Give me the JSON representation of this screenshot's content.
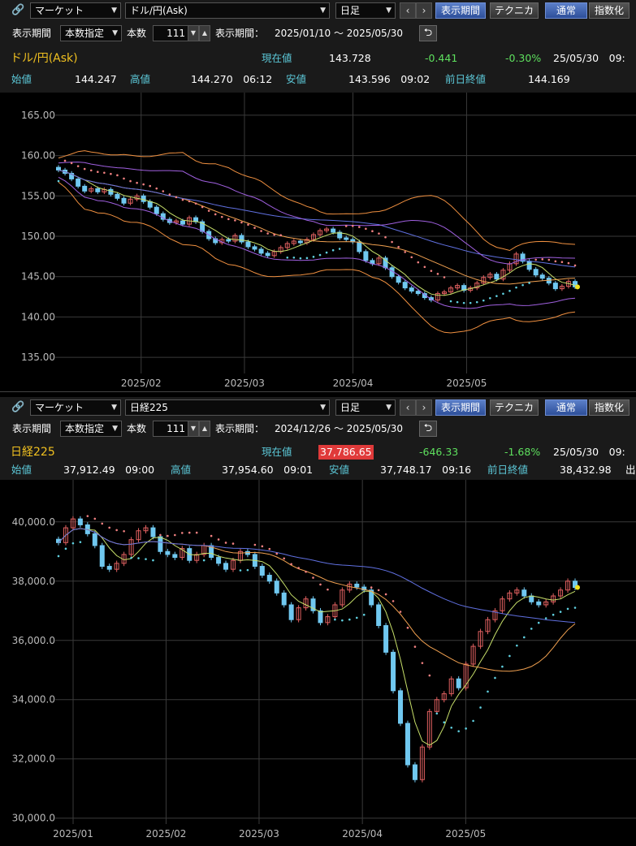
{
  "panels": [
    {
      "market_select": "マーケット",
      "symbol_select": "ドル/円(Ask)",
      "period_select": "日足",
      "buttons": {
        "display_period": "表示期間",
        "technical": "テクニカル",
        "normal": "通常",
        "index": "指数化"
      },
      "period_label": "表示期間",
      "period_mode": "本数指定",
      "count_label": "本数",
      "count_value": "111",
      "range_label": "表示期間：",
      "range_value": "2025/01/10 ～ 2025/05/30",
      "title": "ドル/円(Ask)",
      "current_label": "現在値",
      "current_value": "143.728",
      "change": "-0.441",
      "change_pct": "-0.30%",
      "datetime": "25/05/30　09:",
      "open_label": "始値",
      "open_value": "144.247",
      "high_label": "高値",
      "high_value": "144.270　06:12",
      "low_label": "安値",
      "low_value": "143.596　09:02",
      "prev_label": "前日終値",
      "prev_value": "144.169",
      "extra": "",
      "colors": {
        "bull": "#e06060",
        "bear": "#70c8f0",
        "sma_short": "#c8e06a",
        "sma_mid": "#f0a050",
        "sma_long": "#6070e0",
        "sar": "#60d0e0"
      },
      "chart_data": {
        "type": "candlestick",
        "yticks": [
          "165.00",
          "160.00",
          "155.00",
          "150.00",
          "145.00",
          "140.00",
          "135.00"
        ],
        "ylim": [
          133,
          167
        ],
        "xticks": [
          "2025/02",
          "2025/03",
          "2025/04",
          "2025/05"
        ],
        "series": [
          {
            "name": "close",
            "values": [
              158.2,
              157.8,
              157.1,
              156.2,
              155.6,
              155.9,
              155.5,
              155.8,
              155.2,
              154.7,
              154.1,
              154.6,
              155.0,
              154.3,
              153.6,
              152.8,
              152.1,
              151.7,
              151.9,
              151.5,
              152.3,
              151.8,
              150.6,
              149.7,
              149.2,
              149.6,
              149.4,
              150.1,
              149.3,
              148.7,
              148.4,
              147.9,
              147.6,
              148.1,
              148.6,
              149.1,
              149.4,
              149.2,
              149.6,
              150.2,
              150.7,
              150.9,
              150.5,
              149.8,
              149.6,
              149.3,
              148.1,
              147.0,
              146.6,
              147.3,
              146.1,
              145.0,
              144.3,
              143.6,
              143.2,
              142.9,
              142.4,
              142.1,
              142.9,
              143.1,
              143.6,
              143.9,
              143.3,
              143.6,
              144.2,
              144.9,
              145.3,
              144.7,
              145.8,
              146.6,
              147.8,
              146.9,
              145.9,
              145.2,
              144.8,
              144.2,
              143.5,
              143.8,
              144.4,
              143.728
            ]
          }
        ]
      }
    },
    {
      "market_select": "マーケット",
      "symbol_select": "日経225",
      "period_select": "日足",
      "buttons": {
        "display_period": "表示期間",
        "technical": "テクニカル",
        "normal": "通常",
        "index": "指数化"
      },
      "period_label": "表示期間",
      "period_mode": "本数指定",
      "count_label": "本数",
      "count_value": "111",
      "range_label": "表示期間：",
      "range_value": "2024/12/26 ～ 2025/05/30",
      "title": "日経225",
      "current_label": "現在値",
      "current_value": "37,786.65",
      "change": "-646.33",
      "change_pct": "-1.68%",
      "datetime": "25/05/30　09:",
      "open_label": "始値",
      "open_value": "37,912.49　09:00",
      "high_label": "高値",
      "high_value": "37,954.60　09:01",
      "low_label": "安値",
      "low_value": "37,748.17　09:16",
      "prev_label": "前日終値",
      "prev_value": "38,432.98",
      "extra": "出",
      "colors": {
        "bull": "#e06060",
        "bear": "#70c8f0",
        "sma_short": "#c8e06a",
        "sma_mid": "#f0a050",
        "sma_long": "#6070e0",
        "sar": "#60d0e0"
      },
      "chart_data": {
        "type": "candlestick",
        "yticks": [
          "40,000.0",
          "38,000.0",
          "36,000.0",
          "34,000.0",
          "32,000.0",
          "30,000.0"
        ],
        "ylim": [
          29800,
          41200
        ],
        "xticks": [
          "2025/01",
          "2025/02",
          "2025/03",
          "2025/04",
          "2025/05"
        ],
        "series": [
          {
            "name": "close",
            "values": [
              39300,
              39800,
              40100,
              39900,
              39600,
              39200,
              38500,
              38400,
              38600,
              38900,
              39400,
              39700,
              39800,
              39500,
              39000,
              38900,
              38800,
              39100,
              38700,
              38900,
              39200,
              38800,
              38600,
              38400,
              38700,
              39000,
              38900,
              38500,
              38200,
              38000,
              37600,
              37200,
              36700,
              37100,
              37400,
              37000,
              36600,
              36800,
              37200,
              37700,
              37900,
              37800,
              37700,
              37200,
              36500,
              35600,
              34300,
              33200,
              31800,
              31300,
              32400,
              33600,
              34000,
              34200,
              34700,
              34400,
              35200,
              35800,
              36300,
              36700,
              37000,
              37400,
              37600,
              37700,
              37500,
              37300,
              37200,
              37300,
              37500,
              37700,
              38000,
              37786.65
            ]
          }
        ]
      }
    }
  ]
}
